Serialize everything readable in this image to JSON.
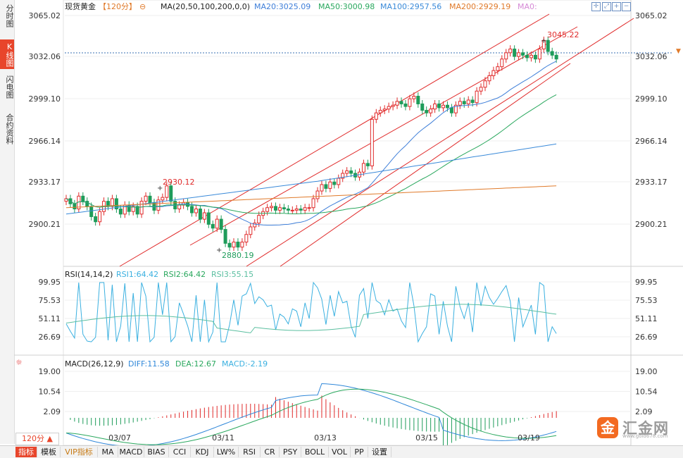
{
  "side_tabs": [
    {
      "label": "分时图",
      "active": false
    },
    {
      "label": "K线图",
      "active": true
    },
    {
      "label": "闪电图",
      "active": false
    },
    {
      "label": "合约资料",
      "active": false
    }
  ],
  "header": {
    "symbol": "现货黄金",
    "period": "【120分】",
    "ma_label": "MA(20,50,100,200,0,0)",
    "ma20": "MA20:3025.09",
    "ma50": "MA50:3000.98",
    "ma100": "MA100:2957.56",
    "ma200": "MA200:2929.19",
    "ma0": "MA0:"
  },
  "colors": {
    "up": "#e02a2a",
    "down": "#1e9c5a",
    "ma20": "#3f7fd9",
    "ma50": "#2aa85e",
    "ma100": "#3a8ad9",
    "ma200": "#e07a2a",
    "channel": "#e02a2a",
    "rsi1": "#3ab0e0",
    "rsi3": "#5bbfa0",
    "diff": "#2f87d9",
    "dea": "#2aa85e"
  },
  "price_axis": {
    "ticks": [
      "3065.02",
      "3032.06",
      "2999.10",
      "2966.14",
      "2933.17",
      "2900.21"
    ],
    "current": "3032.06"
  },
  "annotations": {
    "high": "3045.22",
    "mid_high": "2930.12",
    "low": "2880.19"
  },
  "rsi": {
    "label": "RSI(14,14,2)",
    "rsi1": "RSI1:64.42",
    "rsi2": "RSI2:64.42",
    "rsi3": "RSI3:55.15",
    "ticks": [
      "99.95",
      "75.53",
      "51.11",
      "26.69"
    ]
  },
  "macd": {
    "label": "MACD(26,12,9)",
    "diff": "DIFF:11.58",
    "dea": "DEA:12.67",
    "macd": "MACD:-2.19",
    "ticks": [
      "19.00",
      "10.54",
      "2.09"
    ]
  },
  "x_dates": [
    "03/07",
    "03/11",
    "03/13",
    "03/15",
    "03/19"
  ],
  "period_selector": "120分 ▲",
  "toolbar": [
    "指标",
    "模板",
    "VIP指标",
    "MA",
    "MACD",
    "BIAS",
    "CCI",
    "KDJ",
    "LW%",
    "RSI",
    "CR",
    "PSY",
    "BOLL",
    "VOL",
    "PP",
    "设置"
  ],
  "logo": {
    "mark": "金",
    "text": "汇金网",
    "url": "www.gold678.com"
  },
  "chart_data": {
    "type": "candlestick",
    "title": "现货黄金 120分",
    "price_range": [
      2880.19,
      3065.02
    ],
    "highs_marked": {
      "max": 3045.22,
      "local": 2930.12,
      "min": 2880.19
    },
    "moving_averages": {
      "MA20": 3025.09,
      "MA50": 3000.98,
      "MA100": 2957.56,
      "MA200": 2929.19
    },
    "rsi_last": {
      "RSI1": 64.42,
      "RSI2": 64.42,
      "RSI3": 55.15
    },
    "macd_last": {
      "DIFF": 11.58,
      "DEA": 12.67,
      "MACD": -2.19
    },
    "x_labels": [
      "03/07",
      "03/11",
      "03/13",
      "03/15",
      "03/19"
    ],
    "closes": [
      2920,
      2916,
      2912,
      2922,
      2918,
      2914,
      2906,
      2902,
      2910,
      2918,
      2914,
      2920,
      2912,
      2908,
      2915,
      2910,
      2914,
      2908,
      2918,
      2922,
      2917,
      2911,
      2919,
      2921,
      2930,
      2918,
      2912,
      2915,
      2917,
      2914,
      2909,
      2912,
      2904,
      2909,
      2900,
      2897,
      2904,
      2896,
      2885,
      2882,
      2886,
      2882,
      2886,
      2892,
      2898,
      2901,
      2907,
      2910,
      2913,
      2914,
      2911,
      2913,
      2912,
      2911,
      2911,
      2912,
      2911,
      2913,
      2913,
      2920,
      2926,
      2931,
      2928,
      2933,
      2931,
      2936,
      2940,
      2942,
      2940,
      2937,
      2941,
      2948,
      2946,
      2983,
      2988,
      2990,
      2991,
      2993,
      2994,
      2997,
      2995,
      2993,
      2999,
      3001,
      2995,
      2990,
      2988,
      2991,
      2995,
      2992,
      2994,
      2992,
      2988,
      2994,
      2997,
      2995,
      2998,
      2996,
      3005,
      3008,
      3013,
      3017,
      3021,
      3024,
      3030,
      3035,
      3038,
      3032,
      3035,
      3033,
      3031,
      3033,
      3030,
      3038,
      3045,
      3036,
      3033,
      3030
    ]
  }
}
